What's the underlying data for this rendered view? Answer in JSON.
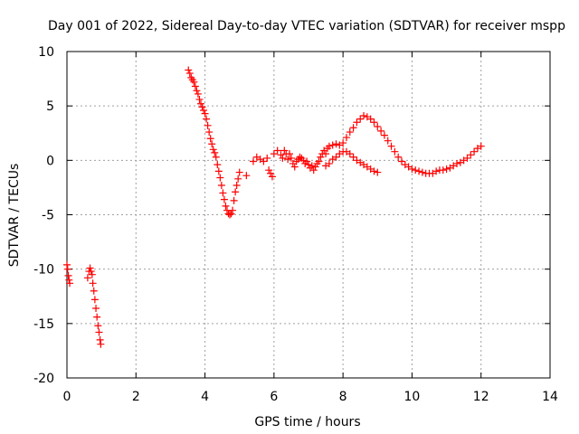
{
  "chart_data": {
    "type": "scatter",
    "title": "Day 001 of 2022, Sidereal Day-to-day VTEC variation (SDTVAR) for receiver mspp",
    "xlabel": "GPS time / hours",
    "ylabel": "SDTVAR / TECUs",
    "xlim": [
      0,
      14
    ],
    "ylim": [
      -20,
      10
    ],
    "xticks": [
      0,
      2,
      4,
      6,
      8,
      10,
      12,
      14
    ],
    "yticks": [
      -20,
      -15,
      -10,
      -5,
      0,
      5,
      10
    ],
    "xtick_labels": [
      "0",
      "2",
      "4",
      "6",
      "8",
      "10",
      "12",
      "14"
    ],
    "ytick_labels": [
      "-20",
      "-15",
      "-10",
      "-5",
      "0",
      "5",
      "10"
    ],
    "grid": true,
    "marker": "+",
    "series": [
      {
        "name": "SDTVAR",
        "color": "#ff0000",
        "points": [
          [
            0.0,
            -9.6
          ],
          [
            0.02,
            -10.0
          ],
          [
            0.04,
            -10.6
          ],
          [
            0.06,
            -11.0
          ],
          [
            0.08,
            -11.3
          ],
          [
            0.6,
            -10.8
          ],
          [
            0.64,
            -10.2
          ],
          [
            0.67,
            -9.9
          ],
          [
            0.7,
            -10.2
          ],
          [
            0.73,
            -10.5
          ],
          [
            0.75,
            -11.3
          ],
          [
            0.78,
            -12.0
          ],
          [
            0.81,
            -12.8
          ],
          [
            0.84,
            -13.6
          ],
          [
            0.87,
            -14.4
          ],
          [
            0.9,
            -15.2
          ],
          [
            0.93,
            -15.8
          ],
          [
            0.96,
            -16.5
          ],
          [
            0.98,
            -16.9
          ],
          [
            3.52,
            8.3
          ],
          [
            3.56,
            8.0
          ],
          [
            3.6,
            7.6
          ],
          [
            3.64,
            7.4
          ],
          [
            3.68,
            7.2
          ],
          [
            3.72,
            6.8
          ],
          [
            3.76,
            6.4
          ],
          [
            3.8,
            6.1
          ],
          [
            3.84,
            5.6
          ],
          [
            3.88,
            5.2
          ],
          [
            3.92,
            4.9
          ],
          [
            3.96,
            4.6
          ],
          [
            4.0,
            4.3
          ],
          [
            4.04,
            3.8
          ],
          [
            4.08,
            3.2
          ],
          [
            4.12,
            2.6
          ],
          [
            4.16,
            2.0
          ],
          [
            4.2,
            1.5
          ],
          [
            4.24,
            1.0
          ],
          [
            4.28,
            0.7
          ],
          [
            4.32,
            0.3
          ],
          [
            4.36,
            -0.4
          ],
          [
            4.4,
            -1.0
          ],
          [
            4.44,
            -1.6
          ],
          [
            4.48,
            -2.3
          ],
          [
            4.52,
            -3.0
          ],
          [
            4.56,
            -3.6
          ],
          [
            4.6,
            -4.2
          ],
          [
            4.64,
            -4.6
          ],
          [
            4.68,
            -4.9
          ],
          [
            4.72,
            -5.0
          ],
          [
            4.76,
            -4.9
          ],
          [
            4.8,
            -4.6
          ],
          [
            4.84,
            -3.7
          ],
          [
            4.88,
            -2.9
          ],
          [
            4.92,
            -2.3
          ],
          [
            4.96,
            -1.7
          ],
          [
            5.0,
            -1.1
          ],
          [
            5.2,
            -1.4
          ],
          [
            5.4,
            -0.1
          ],
          [
            5.5,
            0.3
          ],
          [
            5.6,
            0.1
          ],
          [
            5.7,
            -0.1
          ],
          [
            5.8,
            0.2
          ],
          [
            5.85,
            -0.9
          ],
          [
            5.9,
            -1.2
          ],
          [
            5.95,
            -1.5
          ],
          [
            6.0,
            0.6
          ],
          [
            6.1,
            0.9
          ],
          [
            6.2,
            0.5
          ],
          [
            6.25,
            0.2
          ],
          [
            6.3,
            0.9
          ],
          [
            6.35,
            0.6
          ],
          [
            6.4,
            0.1
          ],
          [
            6.45,
            0.6
          ],
          [
            6.5,
            0.2
          ],
          [
            6.55,
            -0.3
          ],
          [
            6.6,
            -0.6
          ],
          [
            6.65,
            -0.1
          ],
          [
            6.7,
            0.1
          ],
          [
            6.75,
            0.3
          ],
          [
            6.8,
            0.2
          ],
          [
            6.85,
            0.0
          ],
          [
            6.9,
            -0.3
          ],
          [
            6.95,
            -0.1
          ],
          [
            7.0,
            -0.4
          ],
          [
            7.05,
            -0.7
          ],
          [
            7.1,
            -0.5
          ],
          [
            7.15,
            -0.9
          ],
          [
            7.2,
            -0.6
          ],
          [
            7.25,
            -0.3
          ],
          [
            7.3,
            -0.1
          ],
          [
            7.35,
            0.3
          ],
          [
            7.4,
            0.6
          ],
          [
            7.45,
            0.9
          ],
          [
            7.5,
            0.6
          ],
          [
            7.55,
            1.1
          ],
          [
            7.6,
            1.3
          ],
          [
            7.7,
            1.4
          ],
          [
            7.8,
            1.5
          ],
          [
            7.9,
            1.4
          ],
          [
            8.0,
            1.6
          ],
          [
            8.1,
            2.1
          ],
          [
            8.2,
            2.6
          ],
          [
            8.3,
            3.0
          ],
          [
            8.4,
            3.5
          ],
          [
            8.5,
            3.8
          ],
          [
            8.6,
            4.1
          ],
          [
            8.7,
            4.0
          ],
          [
            8.8,
            3.8
          ],
          [
            8.9,
            3.5
          ],
          [
            9.0,
            3.1
          ],
          [
            9.1,
            2.7
          ],
          [
            9.2,
            2.3
          ],
          [
            9.3,
            1.8
          ],
          [
            9.4,
            1.3
          ],
          [
            9.5,
            0.8
          ],
          [
            9.6,
            0.3
          ],
          [
            9.7,
            -0.1
          ],
          [
            9.8,
            -0.4
          ],
          [
            9.9,
            -0.6
          ],
          [
            10.0,
            -0.8
          ],
          [
            10.1,
            -0.9
          ],
          [
            10.2,
            -1.0
          ],
          [
            10.3,
            -1.1
          ],
          [
            10.4,
            -1.2
          ],
          [
            10.5,
            -1.2
          ],
          [
            10.6,
            -1.2
          ],
          [
            10.7,
            -1.0
          ],
          [
            10.8,
            -0.9
          ],
          [
            10.9,
            -0.9
          ],
          [
            11.0,
            -0.8
          ],
          [
            11.1,
            -0.7
          ],
          [
            11.2,
            -0.5
          ],
          [
            11.3,
            -0.3
          ],
          [
            11.4,
            -0.2
          ],
          [
            11.5,
            0.0
          ],
          [
            11.6,
            0.2
          ],
          [
            11.7,
            0.5
          ],
          [
            11.8,
            0.8
          ],
          [
            11.9,
            1.1
          ],
          [
            12.0,
            1.3
          ],
          [
            7.5,
            -0.5
          ],
          [
            7.6,
            -0.3
          ],
          [
            7.7,
            0.1
          ],
          [
            7.8,
            0.3
          ],
          [
            7.9,
            0.6
          ],
          [
            8.0,
            0.8
          ],
          [
            8.1,
            0.8
          ],
          [
            8.2,
            0.6
          ],
          [
            8.3,
            0.3
          ],
          [
            8.4,
            0.0
          ],
          [
            8.5,
            -0.2
          ],
          [
            8.6,
            -0.4
          ],
          [
            8.7,
            -0.6
          ],
          [
            8.8,
            -0.8
          ],
          [
            8.9,
            -1.0
          ],
          [
            9.0,
            -1.1
          ]
        ]
      }
    ]
  }
}
